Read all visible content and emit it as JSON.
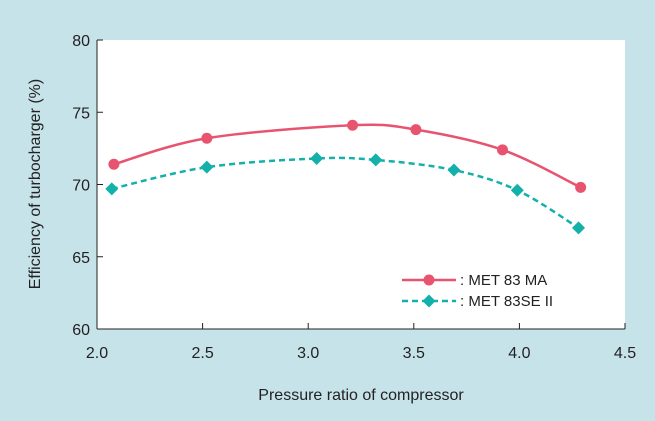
{
  "chart_data": {
    "type": "line",
    "xlabel": "Pressure ratio of compressor",
    "ylabel": "Efficiency of turbocharger (%)",
    "xlim": [
      2.0,
      4.5
    ],
    "ylim": [
      60,
      80
    ],
    "xticks": [
      "2.0",
      "2.5",
      "3.0",
      "3.5",
      "4.0",
      "4.5"
    ],
    "yticks": [
      "60",
      "65",
      "70",
      "75",
      "80"
    ],
    "grid": false,
    "legend_position": "bottom-right",
    "series": [
      {
        "name": ": MET 83 MA",
        "color": "#e8546f",
        "marker": "circle",
        "line_style": "solid",
        "x": [
          2.08,
          2.52,
          3.21,
          3.51,
          3.92,
          4.29
        ],
        "y": [
          71.4,
          73.2,
          74.1,
          73.8,
          72.4,
          69.8
        ]
      },
      {
        "name": ": MET 83SE II",
        "color": "#14b0aa",
        "marker": "diamond",
        "line_style": "dashed",
        "x": [
          2.07,
          2.52,
          3.04,
          3.32,
          3.69,
          3.99,
          4.28
        ],
        "y": [
          69.7,
          71.2,
          71.8,
          71.7,
          71.0,
          69.6,
          67.0
        ]
      }
    ]
  }
}
